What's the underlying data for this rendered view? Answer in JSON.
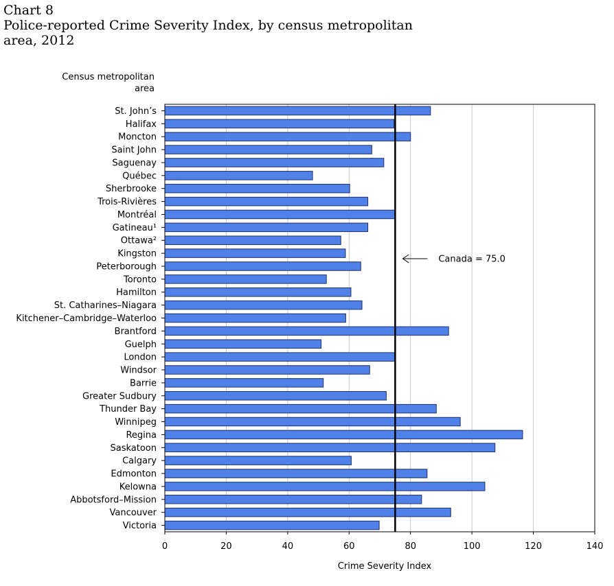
{
  "header": {
    "chart_number": "Chart 8",
    "title_line1": "Police-reported Crime Severity Index, by census metropolitan",
    "title_line2": "area, 2012"
  },
  "chart_data": {
    "type": "bar",
    "orientation": "horizontal",
    "title": "Police-reported Crime Severity Index, by census metropolitan area, 2012",
    "ylabel": "Census metropolitan area",
    "ylabel_lines": [
      "Census metropolitan",
      "area"
    ],
    "xlabel": "Crime Severity Index",
    "xlim": [
      0,
      140
    ],
    "xticks": [
      0,
      20,
      40,
      60,
      80,
      100,
      120,
      140
    ],
    "grid": true,
    "bar_color": "#4f81e8",
    "categories": [
      "St. John’s",
      "Halifax",
      "Moncton",
      "Saint John",
      "Saguenay",
      "Québec",
      "Sherbrooke",
      "Trois-Rivières",
      "Montréal",
      "Gatineau¹",
      "Ottawa²",
      "Kingston",
      "Peterborough",
      "Toronto",
      "Hamilton",
      "St. Catharines–Niagara",
      "Kitchener–Cambridge–Waterloo",
      "Brantford",
      "Guelph",
      "London",
      "Windsor",
      "Barrie",
      "Greater Sudbury",
      "Thunder Bay",
      "Winnipeg",
      "Regina",
      "Saskatoon",
      "Calgary",
      "Edmonton",
      "Kelowna",
      "Abbotsford–Mission",
      "Vancouver",
      "Victoria"
    ],
    "values": [
      86.5,
      74.6,
      80.0,
      67.4,
      71.3,
      48.1,
      60.2,
      66.1,
      75.0,
      66.1,
      57.3,
      58.8,
      63.8,
      52.6,
      60.6,
      64.2,
      58.9,
      92.4,
      50.9,
      74.8,
      66.7,
      51.6,
      72.1,
      88.4,
      96.2,
      116.5,
      107.5,
      60.7,
      85.4,
      104.2,
      83.6,
      93.1,
      69.8
    ],
    "reference_line": {
      "value": 75.0,
      "label": "Canada = 75.0"
    }
  }
}
